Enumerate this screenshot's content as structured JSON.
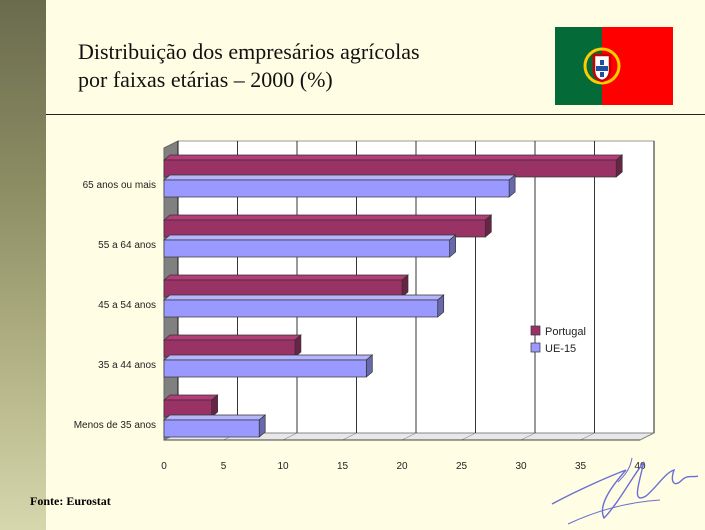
{
  "slide": {
    "title_line1": "Distribuição dos empresários agrícolas",
    "title_line2": "por faixas etárias – 2000 (%)",
    "source": "Fonte: Eurostat",
    "colors": {
      "background": "#fffde3",
      "flag_green": "#046a38",
      "flag_red": "#ff0000",
      "flag_emblem": "#ffcc00"
    }
  },
  "chart_data": {
    "type": "bar",
    "orientation": "horizontal",
    "title": "",
    "categories": [
      "65 anos ou mais",
      "55 a 64 anos",
      "45 a 54 anos",
      "35 a 44 anos",
      "Menos de 35 anos"
    ],
    "series": [
      {
        "name": "Portugal",
        "color": "#993366",
        "values": [
          38,
          27,
          20,
          11,
          4
        ]
      },
      {
        "name": "UE-15",
        "color": "#9999ff",
        "values": [
          29,
          24,
          23,
          17,
          8
        ]
      }
    ],
    "xlim": [
      0,
      40
    ],
    "xticks": [
      0,
      5,
      10,
      15,
      20,
      25,
      30,
      35,
      40
    ],
    "grid": "vertical",
    "legend_position": "right",
    "xlabel": "",
    "ylabel": ""
  }
}
